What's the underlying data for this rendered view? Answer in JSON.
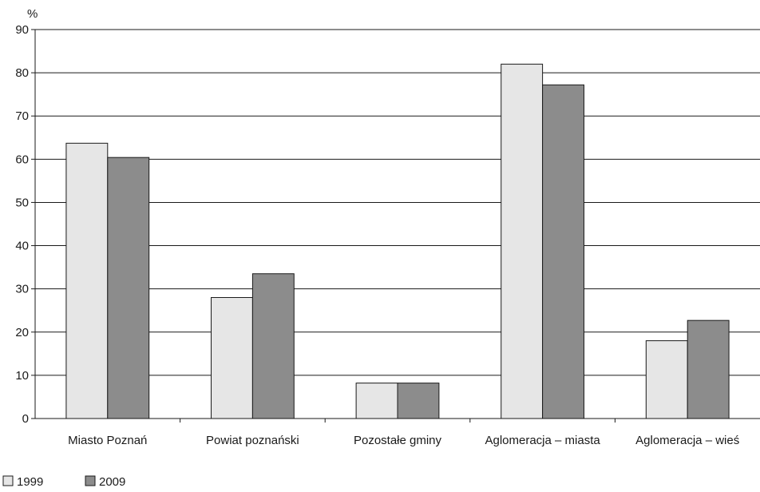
{
  "chart_data": {
    "type": "bar",
    "y_unit": "%",
    "categories": [
      "Miasto Poznań",
      "Powiat poznański",
      "Pozostałe gminy",
      "Aglomeracja – miasta",
      "Aglomeracja – wieś"
    ],
    "series": [
      {
        "name": "1999",
        "values": [
          63.7,
          28.0,
          8.2,
          82.0,
          18.0
        ],
        "color": "#e6e6e6"
      },
      {
        "name": "2009",
        "values": [
          60.4,
          33.5,
          8.2,
          77.2,
          22.7
        ],
        "color": "#8c8c8c"
      }
    ],
    "ylim": [
      0,
      90
    ],
    "yticks": [
      0,
      10,
      20,
      30,
      40,
      50,
      60,
      70,
      80,
      90
    ],
    "grid": true,
    "legend_position": "bottom-left"
  }
}
